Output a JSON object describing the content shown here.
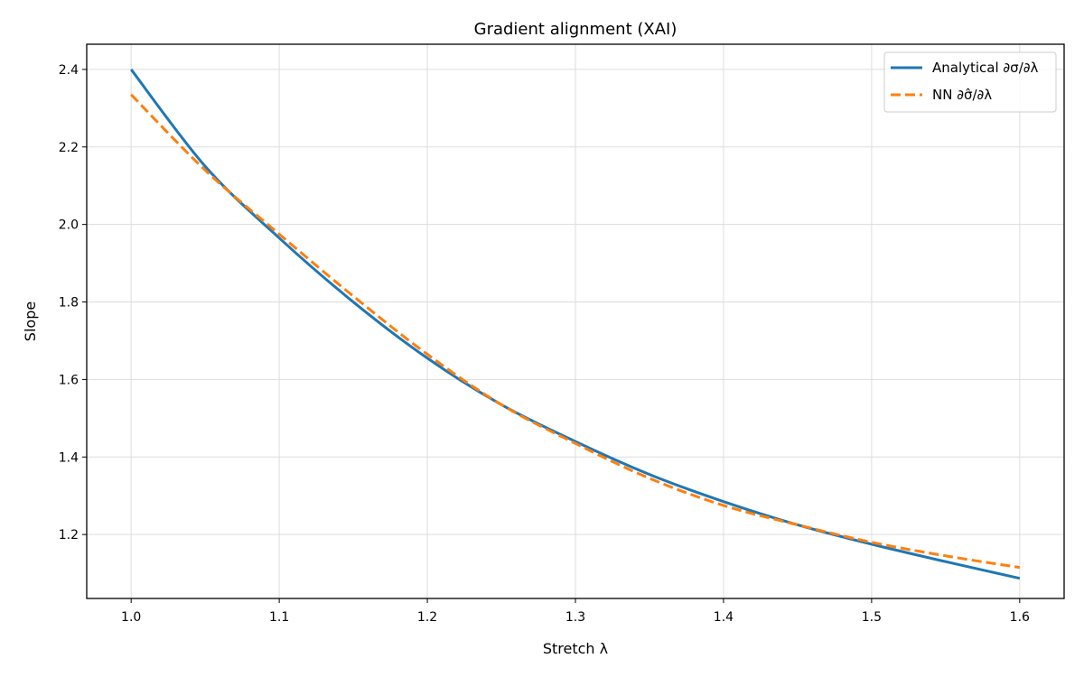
{
  "chart_data": {
    "type": "line",
    "title": "Gradient alignment (XAI)",
    "xlabel": "Stretch λ",
    "ylabel": "Slope",
    "xlim": [
      0.97,
      1.63
    ],
    "ylim": [
      1.035,
      2.465
    ],
    "xticks": [
      1.0,
      1.1,
      1.2,
      1.3,
      1.4,
      1.5,
      1.6
    ],
    "xtick_labels": [
      "1.0",
      "1.1",
      "1.2",
      "1.3",
      "1.4",
      "1.5",
      "1.6"
    ],
    "yticks": [
      1.2,
      1.4,
      1.6,
      1.8,
      2.0,
      2.2,
      2.4
    ],
    "ytick_labels": [
      "1.2",
      "1.4",
      "1.6",
      "1.8",
      "2.0",
      "2.2",
      "2.4"
    ],
    "grid": true,
    "legend_position": "top-right",
    "x": [
      1.0,
      1.05,
      1.1,
      1.15,
      1.2,
      1.25,
      1.3,
      1.35,
      1.4,
      1.45,
      1.5,
      1.55,
      1.6
    ],
    "series": [
      {
        "name": "Analytical ∂σ/∂λ",
        "color": "#1f77b4",
        "style": "solid",
        "values": [
          2.4,
          2.15,
          1.965,
          1.8,
          1.655,
          1.535,
          1.44,
          1.355,
          1.285,
          1.225,
          1.175,
          1.13,
          1.087
        ]
      },
      {
        "name": "NN ∂σ̂/∂λ",
        "color": "#ff7f0e",
        "style": "dashed",
        "values": [
          2.335,
          2.14,
          1.975,
          1.815,
          1.665,
          1.535,
          1.435,
          1.345,
          1.275,
          1.225,
          1.18,
          1.145,
          1.115
        ]
      }
    ]
  }
}
